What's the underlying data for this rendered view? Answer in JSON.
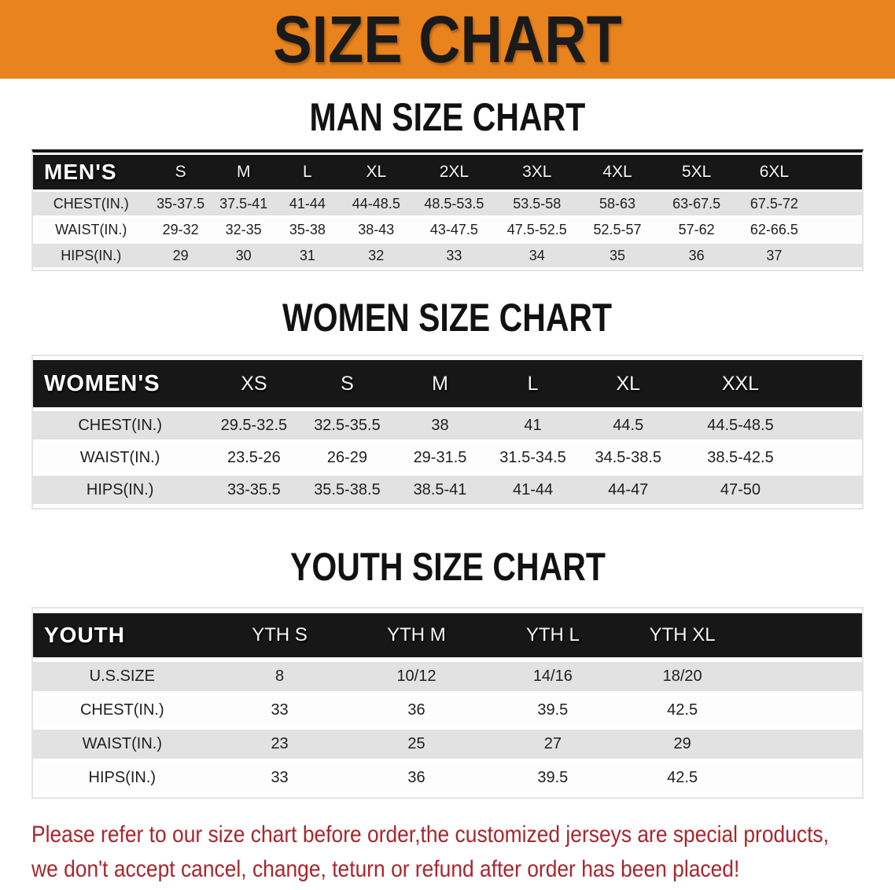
{
  "banner": {
    "title": "SIZE CHART"
  },
  "sections": [
    {
      "heading": "MAN SIZE CHART",
      "header_label": "MEN'S",
      "columns": [
        "S",
        "M",
        "L",
        "XL",
        "2XL",
        "3XL",
        "4XL",
        "5XL",
        "6XL"
      ],
      "rows": [
        {
          "label": "CHEST(IN.)",
          "values": [
            "35-37.5",
            "37.5-41",
            "41-44",
            "44-48.5",
            "48.5-53.5",
            "53.5-58",
            "58-63",
            "63-67.5",
            "67.5-72"
          ]
        },
        {
          "label": "WAIST(IN.)",
          "values": [
            "29-32",
            "32-35",
            "35-38",
            "38-43",
            "43-47.5",
            "47.5-52.5",
            "52.5-57",
            "57-62",
            "62-66.5"
          ]
        },
        {
          "label": "HIPS(IN.)",
          "values": [
            "29",
            "30",
            "31",
            "32",
            "33",
            "34",
            "35",
            "36",
            "37"
          ]
        }
      ]
    },
    {
      "heading": "WOMEN SIZE CHART",
      "header_label": "WOMEN'S",
      "columns": [
        "XS",
        "S",
        "M",
        "L",
        "XL",
        "XXL"
      ],
      "rows": [
        {
          "label": "CHEST(IN.)",
          "values": [
            "29.5-32.5",
            "32.5-35.5",
            "38",
            "41",
            "44.5",
            "44.5-48.5"
          ]
        },
        {
          "label": "WAIST(IN.)",
          "values": [
            "23.5-26",
            "26-29",
            "29-31.5",
            "31.5-34.5",
            "34.5-38.5",
            "38.5-42.5"
          ]
        },
        {
          "label": "HIPS(IN.)",
          "values": [
            "33-35.5",
            "35.5-38.5",
            "38.5-41",
            "41-44",
            "44-47",
            "47-50"
          ]
        }
      ]
    },
    {
      "heading": "YOUTH SIZE CHART",
      "header_label": "YOUTH",
      "columns": [
        "YTH S",
        "YTH M",
        "YTH L",
        "YTH XL"
      ],
      "rows": [
        {
          "label": "U.S.SIZE",
          "values": [
            "8",
            "10/12",
            "14/16",
            "18/20"
          ]
        },
        {
          "label": "CHEST(IN.)",
          "values": [
            "33",
            "36",
            "39.5",
            "42.5"
          ]
        },
        {
          "label": "WAIST(IN.)",
          "values": [
            "23",
            "25",
            "27",
            "29"
          ]
        },
        {
          "label": "HIPS(IN.)",
          "values": [
            "33",
            "36",
            "39.5",
            "42.5"
          ]
        }
      ]
    }
  ],
  "footer_note": {
    "line1": "Please refer to our size chart before order,the customized jerseys are special products,",
    "line2": "we don't accept cancel, change, teturn or refund after order has been placed!"
  },
  "colors": {
    "banner_bg": "#E8831E",
    "banner_text": "#1A1A1A",
    "header_bar": "#171717",
    "stripe_gray": "#E2E2E2",
    "note_red": "#A8262C"
  }
}
